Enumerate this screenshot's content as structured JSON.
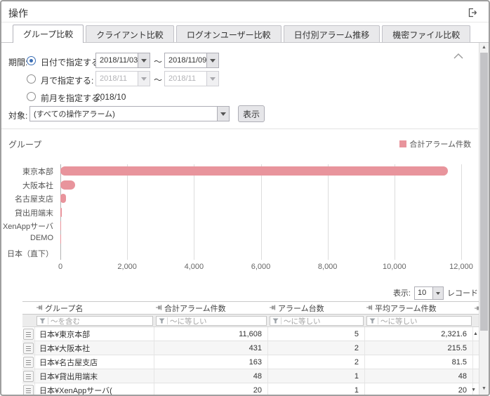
{
  "header": {
    "title": "操作"
  },
  "tabs": [
    {
      "label": "グループ比較",
      "active": true
    },
    {
      "label": "クライアント比較",
      "active": false
    },
    {
      "label": "ログオンユーザー比較",
      "active": false
    },
    {
      "label": "日付別アラーム推移",
      "active": false
    },
    {
      "label": "機密ファイル比較",
      "active": false
    }
  ],
  "filter_panel": {
    "period_label": "期間:",
    "date_option": {
      "label": "日付で指定する:",
      "from": "2018/11/03",
      "separator": "～",
      "to": "2018/11/09",
      "selected": true
    },
    "month_option": {
      "label": "月で指定する:",
      "from": "2018/11",
      "separator": "～",
      "to": "2018/11",
      "selected": false
    },
    "prev_month_option": {
      "label": "前月を指定する:",
      "value": "2018/10",
      "selected": false
    },
    "target_label": "対象:",
    "target_value": "(すべての操作アラーム)",
    "show_button_label": "表示"
  },
  "chart_section": {
    "title": "グループ",
    "legend_label": "合計アラーム件数",
    "bar_color": "#e8949c"
  },
  "chart_data": {
    "type": "bar",
    "orientation": "horizontal",
    "title": "グループ",
    "categories": [
      "東京本部",
      "大阪本社",
      "名古屋支店",
      "貸出用端末",
      "XenAppサーバ",
      "DEMO",
      "日本（直下）"
    ],
    "series": [
      {
        "name": "合計アラーム件数",
        "values": [
          11608,
          431,
          163,
          48,
          20,
          10,
          0
        ]
      }
    ],
    "xlim": [
      0,
      12000
    ],
    "xticks": [
      0,
      2000,
      4000,
      6000,
      8000,
      10000,
      12000
    ],
    "xtick_labels": [
      "0",
      "2,000",
      "4,000",
      "6,000",
      "8,000",
      "10,000",
      "12,000"
    ],
    "grid": "vertical",
    "legend_position": "top-right",
    "bar_color": "#e8949c"
  },
  "table_section": {
    "display_label": "表示:",
    "page_size": "10",
    "records_label": "レコード",
    "columns": [
      "グループ名",
      "合計アラーム件数",
      "アラーム台数",
      "平均アラーム件数"
    ],
    "filter_placeholders": [
      "～を含む",
      "～に等しい",
      "～に等しい",
      "～に等しい"
    ],
    "rows": [
      [
        "日本¥東京本部",
        "11,608",
        "5",
        "2,321.6"
      ],
      [
        "日本¥大阪本社",
        "431",
        "2",
        "215.5"
      ],
      [
        "日本¥名古屋支店",
        "163",
        "2",
        "81.5"
      ],
      [
        "日本¥貸出用端末",
        "48",
        "1",
        "48"
      ],
      [
        "日本¥XenAppサーバ(",
        "20",
        "1",
        "20"
      ]
    ]
  },
  "icons": {
    "export": "box-with-right-arrow",
    "collapse": "chevron-up",
    "dropdown": "triangle-down",
    "filter": "funnel",
    "column_pin": "horizontal-pushpin",
    "row_detail": "document-lines",
    "scroll_up": "▲",
    "scroll_down": "▼"
  }
}
